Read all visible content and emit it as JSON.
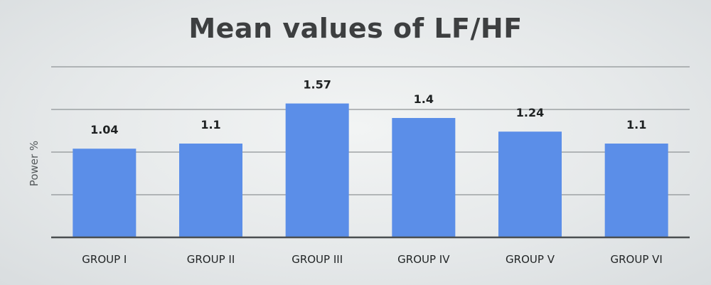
{
  "chart_data": {
    "type": "bar",
    "title": "Mean values of LF/HF",
    "ylabel": "Power %",
    "xlabel": "",
    "categories": [
      "GROUP I",
      "GROUP II",
      "GROUP III",
      "GROUP IV",
      "GROUP V",
      "GROUP VI"
    ],
    "values": [
      1.04,
      1.1,
      1.57,
      1.4,
      1.24,
      1.1
    ],
    "data_labels": [
      "1.04",
      "1.1",
      "1.57",
      "1.4",
      "1.24",
      "1.1"
    ],
    "ylim": [
      0,
      2
    ],
    "grid": true,
    "legend": "none",
    "colors": {
      "bar": "#5b8ee8",
      "gridline": "#8f9496",
      "baseline": "#4a4e50"
    }
  }
}
